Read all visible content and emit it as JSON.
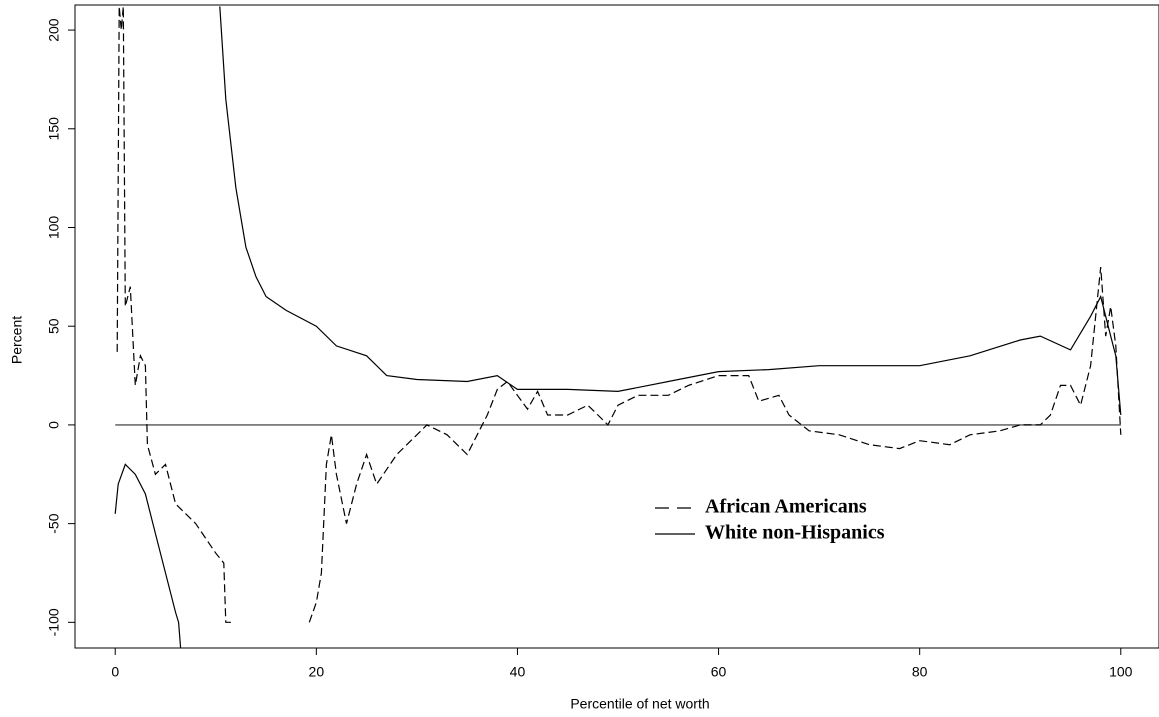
{
  "chart_data": {
    "type": "line",
    "x_label": "Percentile of net worth",
    "y_label": "Percent",
    "xlim": [
      -4,
      103.8
    ],
    "ylim": [
      -113,
      212.7
    ],
    "xticks": [
      0,
      20,
      40,
      60,
      80,
      100
    ],
    "yticks": [
      -100,
      -50,
      0,
      50,
      100,
      150,
      200
    ],
    "reference_line": 0,
    "series": [
      {
        "name": "African Americans",
        "color": "#000000",
        "style": "dashed",
        "x": [
          0.2,
          0.4,
          0.6,
          0.8,
          1.0,
          1.5,
          2.0,
          2.5,
          3.0,
          3.2,
          4.0,
          5.0,
          6.0,
          8.0,
          10.0,
          10.8,
          11.0,
          11.5,
          15.0,
          19.3,
          20.0,
          20.5,
          21.0,
          21.5,
          22.0,
          23.0,
          24.0,
          25.0,
          26.0,
          28.0,
          30.0,
          31.0,
          33.0,
          35.0,
          36.0,
          37.0,
          38.0,
          39.0,
          40.0,
          41.0,
          42.0,
          43.0,
          45.0,
          47.0,
          48.0,
          49.0,
          50.0,
          52.0,
          55.0,
          57.0,
          60.0,
          63.0,
          64.0,
          66.0,
          67.0,
          69.0,
          72.0,
          75.0,
          78.0,
          80.0,
          83.0,
          85.0,
          88.0,
          90.0,
          92.0,
          93.0,
          94.0,
          95.0,
          96.0,
          97.0,
          98.0,
          98.5,
          99.0,
          99.5,
          100.0
        ],
        "values": [
          37,
          212,
          200,
          212,
          60,
          70,
          20,
          35,
          30,
          -10,
          -25,
          -20,
          -40,
          -50,
          -65,
          -70,
          -100,
          -100,
          null,
          -100,
          -90,
          -75,
          -20,
          -5,
          -25,
          -50,
          -30,
          -15,
          -30,
          -15,
          -5,
          0,
          -5,
          -15,
          -5,
          5,
          18,
          22,
          15,
          8,
          17,
          5,
          5,
          10,
          5,
          0,
          10,
          15,
          15,
          20,
          25,
          25,
          12,
          15,
          5,
          -3,
          -5,
          -10,
          -12,
          -8,
          -10,
          -5,
          -3,
          0,
          0,
          5,
          20,
          20,
          10,
          30,
          80,
          45,
          60,
          40,
          -5
        ]
      },
      {
        "name": "White non-Hispanics",
        "color": "#000000",
        "style": "solid",
        "x": [
          0.0,
          0.3,
          1.0,
          2.0,
          3.0,
          4.0,
          5.0,
          6.0,
          6.3,
          6.5,
          8.5,
          10.4,
          11.0,
          12.0,
          13.0,
          14.0,
          15.0,
          17.0,
          20.0,
          22.0,
          25.0,
          27.0,
          30.0,
          35.0,
          38.0,
          40.0,
          45.0,
          50.0,
          55.0,
          60.0,
          65.0,
          70.0,
          75.0,
          80.0,
          85.0,
          90.0,
          92.0,
          95.0,
          97.0,
          98.0,
          99.0,
          99.5,
          100.0
        ],
        "values": [
          -45,
          -30,
          -20,
          -25,
          -35,
          -55,
          -75,
          -95,
          -100,
          -113,
          null,
          212,
          165,
          120,
          90,
          75,
          65,
          58,
          50,
          40,
          35,
          25,
          23,
          22,
          25,
          18,
          18,
          17,
          22,
          27,
          28,
          30,
          30,
          30,
          35,
          43,
          45,
          38,
          55,
          65,
          45,
          35,
          5
        ]
      }
    ],
    "legend": "lower-right"
  }
}
